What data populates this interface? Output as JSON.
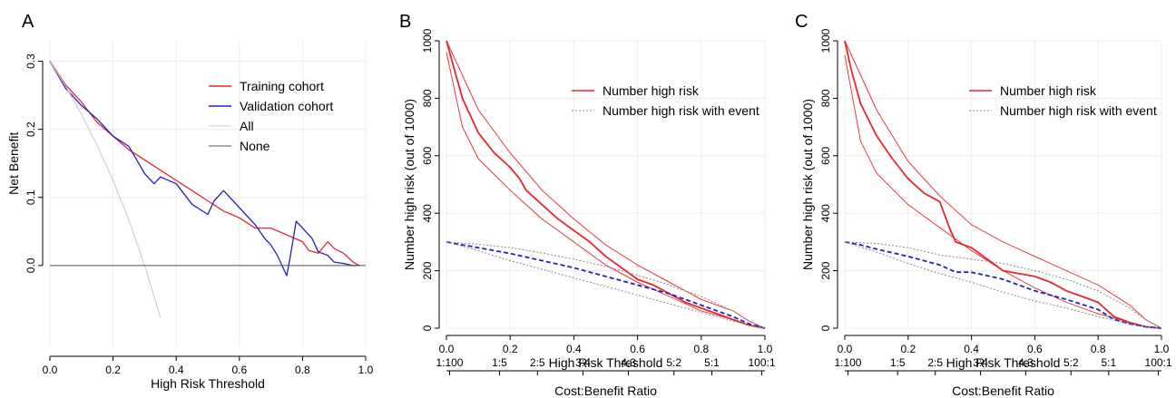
{
  "chart_data": [
    {
      "panel": "A",
      "type": "line",
      "xlabel": "High Risk Threshold",
      "ylabel": "Net Benefit",
      "xlim": [
        0,
        1
      ],
      "ylim": [
        -0.12,
        0.33
      ],
      "xticks": [
        "0.0",
        "0.2",
        "0.4",
        "0.6",
        "0.8",
        "1.0"
      ],
      "yticks": [
        "0.0",
        "0.1",
        "0.2",
        "0.3"
      ],
      "grid": true,
      "legend_position": "top-right",
      "series": [
        {
          "name": "Training cohort",
          "color": "#e8262a",
          "x": [
            0,
            0.05,
            0.1,
            0.15,
            0.2,
            0.25,
            0.3,
            0.35,
            0.4,
            0.45,
            0.5,
            0.55,
            0.6,
            0.65,
            0.7,
            0.75,
            0.8,
            0.82,
            0.85,
            0.88,
            0.9,
            0.93,
            0.96,
            0.98
          ],
          "y": [
            0.3,
            0.265,
            0.24,
            0.21,
            0.19,
            0.17,
            0.155,
            0.14,
            0.125,
            0.11,
            0.095,
            0.08,
            0.07,
            0.055,
            0.055,
            0.045,
            0.035,
            0.022,
            0.018,
            0.035,
            0.025,
            0.018,
            0.005,
            0.0
          ]
        },
        {
          "name": "Validation cohort",
          "color": "#1f22c4",
          "x": [
            0,
            0.05,
            0.1,
            0.15,
            0.2,
            0.25,
            0.3,
            0.33,
            0.35,
            0.4,
            0.45,
            0.5,
            0.52,
            0.55,
            0.6,
            0.65,
            0.68,
            0.7,
            0.72,
            0.75,
            0.76,
            0.78,
            0.8,
            0.83,
            0.85,
            0.88,
            0.9,
            0.93,
            0.96,
            0.98
          ],
          "y": [
            0.3,
            0.26,
            0.235,
            0.215,
            0.19,
            0.175,
            0.135,
            0.12,
            0.13,
            0.12,
            0.09,
            0.075,
            0.095,
            0.11,
            0.085,
            0.06,
            0.04,
            0.03,
            0.015,
            -0.015,
            0.01,
            0.065,
            0.055,
            0.04,
            0.02,
            0.015,
            0.005,
            0.003,
            0.0,
            0.0
          ]
        },
        {
          "name": "All",
          "color": "#c8c8c8",
          "x": [
            0,
            0.05,
            0.1,
            0.15,
            0.2,
            0.25,
            0.3,
            0.33,
            0.35
          ],
          "y": [
            0.3,
            0.263,
            0.222,
            0.176,
            0.125,
            0.067,
            0.0,
            -0.045,
            -0.077
          ]
        },
        {
          "name": "None",
          "color": "#555555",
          "x": [
            0,
            1
          ],
          "y": [
            0,
            0
          ]
        }
      ]
    },
    {
      "panel": "B",
      "type": "line",
      "xlabel": "High Risk Threshold",
      "ylabel": "Number high risk (out of 1000)",
      "x2label": "Cost:Benefit Ratio",
      "xlim": [
        0,
        1
      ],
      "ylim": [
        0,
        1000
      ],
      "xticks": [
        "0.0",
        "0.2",
        "0.4",
        "0.6",
        "0.8",
        "1.0"
      ],
      "yticks": [
        "0",
        "200",
        "400",
        "600",
        "800",
        "1000"
      ],
      "x2ticks": [
        "1:100",
        "1:5",
        "2:5",
        "3:4",
        "4:3",
        "5:2",
        "5:1",
        "100:1"
      ],
      "x2tick_positions": [
        0.0099,
        0.1667,
        0.2857,
        0.4286,
        0.5714,
        0.7143,
        0.8333,
        0.9901
      ],
      "grid": true,
      "legend_position": "top-right",
      "legend": [
        "Number high risk",
        "Number high risk with event"
      ],
      "series": [
        {
          "name": "Number high risk",
          "color": "#e8262a",
          "x": [
            0,
            0.02,
            0.05,
            0.1,
            0.15,
            0.2,
            0.23,
            0.25,
            0.3,
            0.35,
            0.4,
            0.45,
            0.5,
            0.55,
            0.6,
            0.65,
            0.7,
            0.75,
            0.8,
            0.85,
            0.9,
            0.95,
            1.0
          ],
          "y": [
            1000,
            920,
            800,
            680,
            610,
            560,
            520,
            480,
            430,
            380,
            340,
            300,
            250,
            210,
            170,
            150,
            120,
            90,
            70,
            50,
            30,
            10,
            0
          ]
        },
        {
          "name": "Number high risk upper",
          "color": "#e8262a",
          "x": [
            0,
            0.05,
            0.1,
            0.2,
            0.3,
            0.4,
            0.5,
            0.6,
            0.7,
            0.8,
            0.9,
            0.95,
            1.0
          ],
          "y": [
            1000,
            880,
            760,
            610,
            480,
            380,
            290,
            220,
            160,
            100,
            60,
            25,
            0
          ]
        },
        {
          "name": "Number high risk lower",
          "color": "#e8262a",
          "x": [
            0,
            0.05,
            0.1,
            0.2,
            0.3,
            0.4,
            0.5,
            0.6,
            0.7,
            0.8,
            0.9,
            0.95,
            1.0
          ],
          "y": [
            960,
            700,
            590,
            480,
            380,
            300,
            220,
            160,
            110,
            60,
            30,
            10,
            0
          ]
        },
        {
          "name": "Number high risk with event",
          "color": "#1f22c4",
          "x": [
            0,
            0.05,
            0.1,
            0.2,
            0.3,
            0.4,
            0.5,
            0.6,
            0.7,
            0.8,
            0.9,
            0.95,
            1.0
          ],
          "y": [
            300,
            290,
            280,
            260,
            235,
            210,
            180,
            150,
            120,
            80,
            40,
            15,
            0
          ]
        },
        {
          "name": "Number high risk with event upper",
          "color": "#888888",
          "x": [
            0,
            0.1,
            0.2,
            0.3,
            0.4,
            0.5,
            0.6,
            0.7,
            0.8,
            0.9,
            0.95,
            1.0
          ],
          "y": [
            300,
            292,
            280,
            262,
            240,
            215,
            185,
            150,
            110,
            60,
            25,
            0
          ]
        },
        {
          "name": "Number high risk with event lower",
          "color": "#888888",
          "x": [
            0,
            0.1,
            0.2,
            0.3,
            0.4,
            0.5,
            0.6,
            0.7,
            0.8,
            0.9,
            0.95,
            1.0
          ],
          "y": [
            300,
            270,
            235,
            205,
            175,
            145,
            115,
            85,
            55,
            25,
            10,
            0
          ]
        }
      ]
    },
    {
      "panel": "C",
      "type": "line",
      "xlabel": "High Risk Threshold",
      "ylabel": "Number high risk (out of 1000)",
      "x2label": "Cost:Benefit Ratio",
      "xlim": [
        0,
        1
      ],
      "ylim": [
        0,
        1000
      ],
      "xticks": [
        "0.0",
        "0.2",
        "0.4",
        "0.6",
        "0.8",
        "1.0"
      ],
      "yticks": [
        "0",
        "200",
        "400",
        "600",
        "800",
        "1000"
      ],
      "x2ticks": [
        "1:100",
        "1:5",
        "2:5",
        "3:4",
        "4:3",
        "5:2",
        "5:1",
        "100:1"
      ],
      "x2tick_positions": [
        0.0099,
        0.1667,
        0.2857,
        0.4286,
        0.5714,
        0.7143,
        0.8333,
        0.9901
      ],
      "grid": true,
      "legend_position": "top-right",
      "legend": [
        "Number high risk",
        "Number high risk with event"
      ],
      "series": [
        {
          "name": "Number high risk",
          "color": "#e8262a",
          "x": [
            0,
            0.02,
            0.05,
            0.1,
            0.15,
            0.2,
            0.25,
            0.3,
            0.33,
            0.35,
            0.4,
            0.45,
            0.5,
            0.55,
            0.6,
            0.65,
            0.7,
            0.75,
            0.8,
            0.85,
            0.9,
            0.95,
            1.0
          ],
          "y": [
            1000,
            900,
            780,
            670,
            590,
            520,
            470,
            440,
            350,
            300,
            280,
            240,
            200,
            190,
            180,
            160,
            130,
            110,
            90,
            40,
            20,
            5,
            0
          ]
        },
        {
          "name": "Number high risk upper",
          "color": "#e8262a",
          "x": [
            0,
            0.05,
            0.1,
            0.2,
            0.3,
            0.4,
            0.5,
            0.6,
            0.7,
            0.8,
            0.9,
            0.95,
            1.0
          ],
          "y": [
            1000,
            880,
            760,
            580,
            460,
            360,
            300,
            250,
            200,
            150,
            80,
            30,
            0
          ]
        },
        {
          "name": "Number high risk lower",
          "color": "#e8262a",
          "x": [
            0,
            0.05,
            0.1,
            0.2,
            0.3,
            0.4,
            0.5,
            0.6,
            0.7,
            0.8,
            0.9,
            0.95,
            1.0
          ],
          "y": [
            950,
            650,
            540,
            430,
            350,
            270,
            200,
            140,
            90,
            50,
            20,
            5,
            0
          ]
        },
        {
          "name": "Number high risk with event",
          "color": "#1f22c4",
          "x": [
            0,
            0.05,
            0.1,
            0.2,
            0.3,
            0.35,
            0.4,
            0.5,
            0.6,
            0.7,
            0.8,
            0.85,
            0.9,
            0.95,
            1.0
          ],
          "y": [
            300,
            290,
            275,
            250,
            220,
            195,
            195,
            170,
            130,
            100,
            65,
            30,
            15,
            5,
            0
          ]
        },
        {
          "name": "Number high risk with event upper",
          "color": "#888888",
          "x": [
            0,
            0.1,
            0.2,
            0.3,
            0.4,
            0.5,
            0.6,
            0.7,
            0.8,
            0.9,
            0.95,
            1.0
          ],
          "y": [
            300,
            295,
            280,
            255,
            240,
            225,
            200,
            170,
            130,
            70,
            30,
            0
          ]
        },
        {
          "name": "Number high risk with event lower",
          "color": "#888888",
          "x": [
            0,
            0.1,
            0.2,
            0.3,
            0.4,
            0.5,
            0.6,
            0.7,
            0.8,
            0.9,
            0.95,
            1.0
          ],
          "y": [
            300,
            265,
            225,
            190,
            160,
            125,
            95,
            70,
            40,
            15,
            5,
            0
          ]
        }
      ]
    }
  ]
}
